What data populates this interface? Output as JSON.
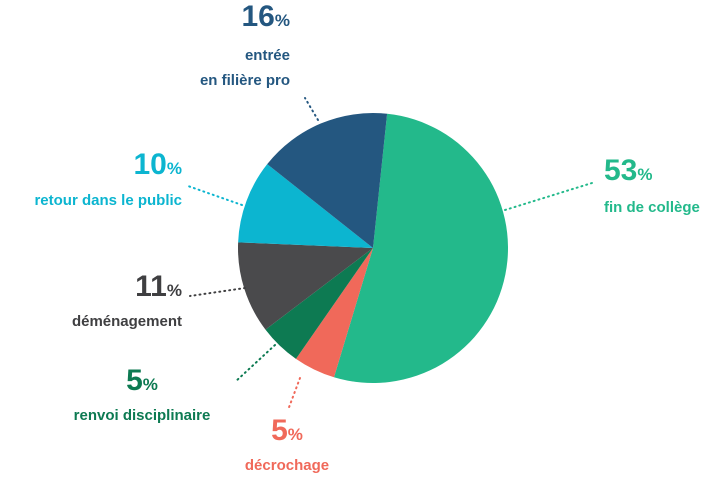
{
  "chart_data": {
    "type": "pie",
    "categories": [
      "fin de collège",
      "décrochage",
      "renvoi disciplinaire",
      "déménagement",
      "retour dans le public",
      "entrée\nen filière pro"
    ],
    "values": [
      53,
      5,
      5,
      11,
      10,
      16
    ],
    "value_labels": [
      "53%",
      "5%",
      "5%",
      "11%",
      "10%",
      "16%"
    ],
    "colors": [
      "#23b98b",
      "#f0695a",
      "#0d7a52",
      "#4a4a4c",
      "#0cb5d0",
      "#245780"
    ],
    "label_colors": [
      "#23b98b",
      "#f0695a",
      "#0d7a52",
      "#3f3f41",
      "#0cb5d0",
      "#245780"
    ]
  }
}
